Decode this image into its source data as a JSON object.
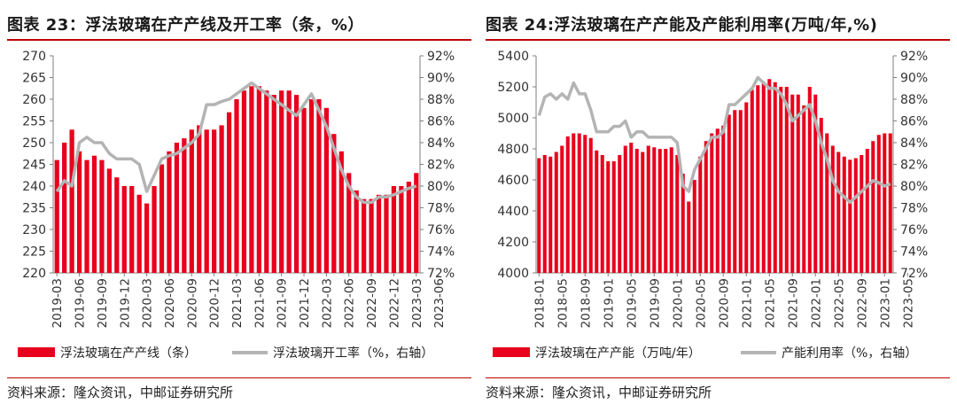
{
  "charts": [
    {
      "title": "图表 23：浮法玻璃在产产线及开工率（条，%）",
      "source": "资料来源：隆众资讯，中邮证券研究所",
      "bar_color": "#e8001c",
      "line_color": "#b4b4b4",
      "legend": {
        "bars": "浮法玻璃在产产线（条）",
        "line": "浮法玻璃开工率（%，右轴）"
      },
      "x_tick_labels": [
        "2019-03",
        "2019-06",
        "2019-09",
        "2019-12",
        "2020-03",
        "2020-06",
        "2020-09",
        "2020-12",
        "2021-03",
        "2021-06",
        "2021-09",
        "2021-12",
        "2022-03",
        "2022-06",
        "2022-09",
        "2022-12",
        "2023-03",
        "2023-06"
      ],
      "y_left_ticks": [
        220,
        225,
        230,
        235,
        240,
        245,
        250,
        255,
        260,
        265,
        270
      ],
      "y_right_ticks": [
        "72%",
        "74%",
        "76%",
        "78%",
        "80%",
        "82%",
        "84%",
        "86%",
        "88%",
        "90%",
        "92%"
      ]
    },
    {
      "title": "图表 24:浮法玻璃在产产能及产能利用率(万吨/年,%)",
      "source": "资料来源：隆众资讯，中邮证券研究所",
      "bar_color": "#e8001c",
      "line_color": "#b4b4b4",
      "legend": {
        "bars": "浮法玻璃在产产能（万吨/年）",
        "line": "产能利用率（%，右轴）"
      },
      "x_tick_labels": [
        "2018-01",
        "2018-05",
        "2018-09",
        "2019-01",
        "2019-05",
        "2019-09",
        "2020-01",
        "2020-05",
        "2020-09",
        "2021-01",
        "2021-05",
        "2021-09",
        "2022-01",
        "2022-05",
        "2022-09",
        "2023-01",
        "2023-05"
      ],
      "y_left_ticks": [
        4000,
        4200,
        4400,
        4600,
        4800,
        5000,
        5200,
        5400
      ],
      "y_right_ticks": [
        "72%",
        "74%",
        "76%",
        "78%",
        "80%",
        "82%",
        "84%",
        "86%",
        "88%",
        "90%",
        "92%"
      ]
    }
  ],
  "chart_data": [
    {
      "type": "bar",
      "title": "图表 23：浮法玻璃在产产线及开工率（条，%）",
      "x_start": "2019-03",
      "x_end": "2023-07",
      "y_left_range": [
        220,
        270
      ],
      "y_right_range": [
        72,
        92
      ],
      "grid": false,
      "legend_position": "bottom",
      "series": [
        {
          "name": "浮法玻璃在产产线（条）",
          "kind": "bar",
          "axis": "left",
          "monthly_values": [
            246,
            250,
            253,
            248,
            246,
            247,
            246,
            244,
            242,
            240,
            240,
            238,
            236,
            240,
            245,
            248,
            250,
            251,
            253,
            254,
            253,
            253,
            254,
            257,
            260,
            262,
            263,
            263,
            262,
            261,
            262,
            262,
            261,
            258,
            260,
            260,
            258,
            252,
            248,
            243,
            239,
            237,
            237,
            238,
            238,
            240,
            240,
            241,
            243
          ]
        },
        {
          "name": "浮法玻璃开工率（%，右轴）",
          "kind": "line",
          "axis": "right",
          "monthly_values": [
            79.5,
            80.5,
            80.0,
            84.0,
            84.5,
            84.0,
            84.0,
            83.0,
            82.5,
            82.5,
            82.5,
            82.0,
            79.5,
            81.0,
            82.5,
            82.8,
            83.0,
            83.5,
            84.0,
            84.8,
            87.5,
            87.5,
            87.8,
            88.0,
            88.5,
            89.0,
            89.5,
            89.0,
            88.5,
            88.0,
            87.5,
            87.0,
            86.5,
            87.5,
            88.5,
            87.0,
            85.5,
            83.5,
            81.5,
            80.0,
            79.0,
            78.5,
            78.5,
            79.0,
            79.0,
            79.2,
            79.5,
            79.8,
            80.0
          ]
        }
      ]
    },
    {
      "type": "bar",
      "title": "图表 24:浮法玻璃在产产能及产能利用率(万吨/年,%)",
      "x_start": "2018-01",
      "x_end": "2023-07",
      "y_left_range": [
        4000,
        5400
      ],
      "y_right_range": [
        72,
        92
      ],
      "grid": false,
      "legend_position": "bottom",
      "series": [
        {
          "name": "浮法玻璃在产产能（万吨/年）",
          "kind": "bar",
          "axis": "left",
          "monthly_values": [
            4740,
            4760,
            4750,
            4780,
            4820,
            4880,
            4900,
            4900,
            4890,
            4870,
            4790,
            4760,
            4720,
            4720,
            4760,
            4820,
            4840,
            4800,
            4780,
            4820,
            4810,
            4800,
            4800,
            4810,
            4760,
            4640,
            4460,
            4600,
            4750,
            4850,
            4900,
            4930,
            4950,
            5020,
            5050,
            5050,
            5100,
            5180,
            5210,
            5230,
            5250,
            5230,
            5200,
            5200,
            5150,
            5150,
            5080,
            5200,
            5150,
            5000,
            4900,
            4820,
            4780,
            4750,
            4730,
            4740,
            4760,
            4800,
            4850,
            4890,
            4900,
            4900
          ]
        },
        {
          "name": "产能利用率（%，右轴）",
          "kind": "line",
          "axis": "right",
          "monthly_values": [
            86.5,
            88.2,
            88.5,
            88.0,
            88.5,
            88.0,
            89.5,
            88.5,
            88.5,
            87.0,
            85.0,
            85.0,
            85.0,
            85.5,
            85.5,
            86.0,
            84.5,
            85.0,
            85.0,
            84.5,
            84.5,
            84.5,
            84.5,
            84.5,
            84.0,
            80.0,
            79.5,
            81.5,
            82.5,
            83.5,
            84.5,
            84.5,
            85.0,
            87.5,
            87.5,
            88.0,
            88.5,
            89.0,
            90.0,
            89.5,
            89.0,
            89.0,
            88.5,
            87.5,
            86.0,
            86.5,
            87.0,
            87.5,
            86.0,
            84.0,
            82.5,
            80.5,
            79.5,
            79.0,
            78.5,
            79.0,
            79.5,
            80.0,
            80.5,
            80.3,
            80.0,
            80.2
          ]
        }
      ]
    }
  ]
}
